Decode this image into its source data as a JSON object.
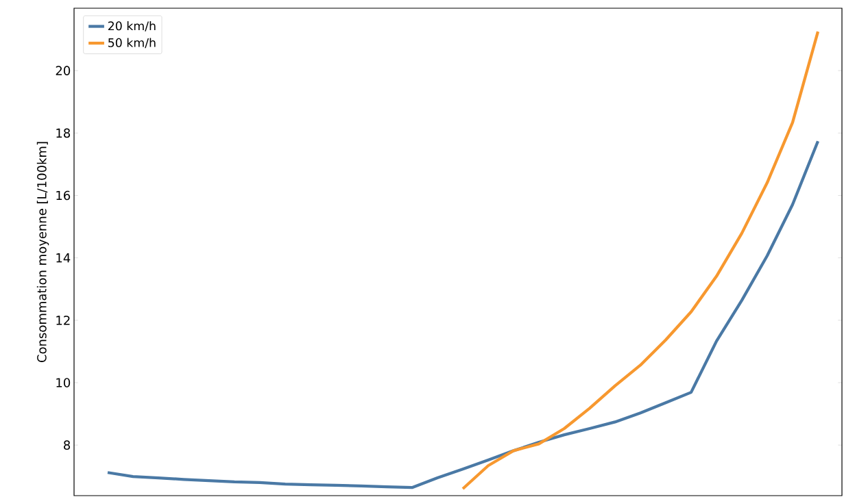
{
  "chart_data": {
    "type": "line",
    "ylabel": "Consommation moyenne [L/100km]",
    "categories": [
      null,
      null,
      null,
      null,
      null,
      null,
      null,
      null,
      null,
      null,
      null,
      null,
      null,
      null,
      null,
      null,
      null,
      null,
      null,
      null,
      null,
      null,
      null,
      null,
      null,
      null,
      null,
      null,
      null
    ],
    "series": [
      {
        "name": "20 km/h",
        "color": "#4a79a5",
        "values": [
          7.12,
          6.99,
          6.95,
          6.9,
          6.86,
          6.82,
          6.8,
          6.75,
          6.73,
          6.71,
          6.69,
          6.66,
          6.64,
          6.95,
          7.23,
          7.52,
          7.82,
          8.09,
          8.33,
          8.53,
          8.74,
          9.03,
          9.36,
          9.69,
          11.33,
          12.64,
          14.07,
          15.71,
          17.74
        ]
      },
      {
        "name": "50 km/h",
        "color": "#f7982f",
        "values": [
          null,
          null,
          null,
          null,
          null,
          null,
          null,
          null,
          null,
          null,
          null,
          null,
          null,
          null,
          6.6,
          7.34,
          7.82,
          8.04,
          8.53,
          9.18,
          9.9,
          10.56,
          11.37,
          12.27,
          13.41,
          14.79,
          16.41,
          18.34,
          21.25
        ]
      }
    ],
    "ylim": [
      6.38,
      22.0
    ],
    "yticks": [
      8,
      10,
      12,
      14,
      16,
      18,
      20
    ],
    "legend": "top left",
    "tick_labels": "y",
    "grid": false,
    "line_style": "solid",
    "marker": "none"
  }
}
